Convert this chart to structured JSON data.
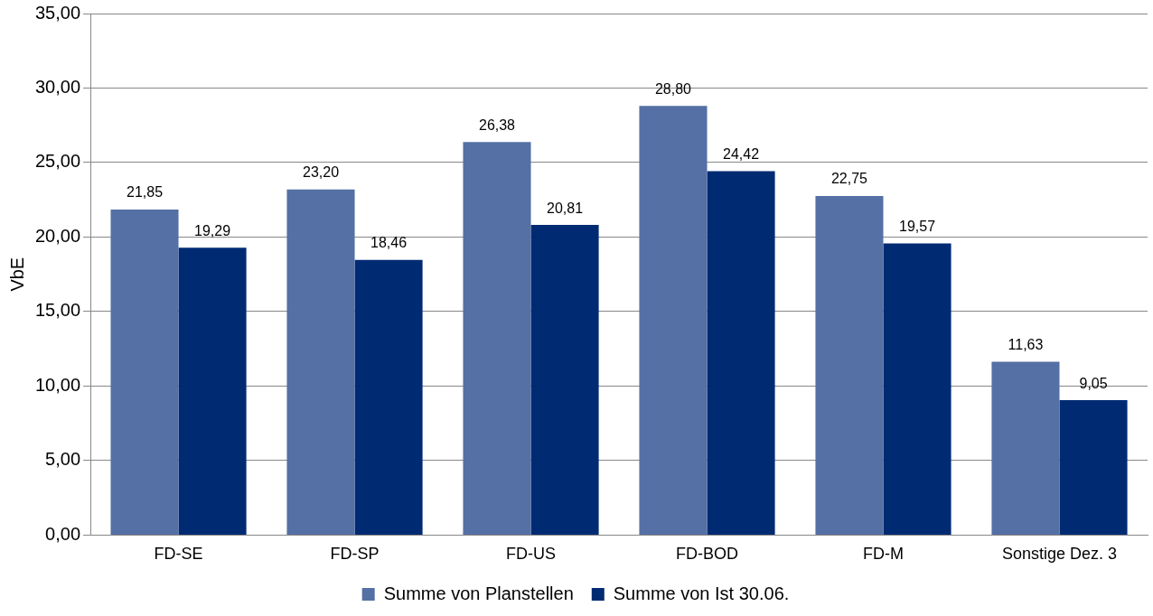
{
  "chart_data": {
    "type": "bar",
    "ylabel": "VbE",
    "categories": [
      "FD-SE",
      "FD-SP",
      "FD-US",
      "FD-BOD",
      "FD-M",
      "Sonstige Dez. 3"
    ],
    "series": [
      {
        "name": "Summe von Planstellen",
        "color": "#5470a4",
        "values": [
          21.85,
          23.2,
          26.38,
          28.8,
          22.75,
          11.63
        ],
        "value_labels": [
          "21,85",
          "23,20",
          "26,38",
          "28,80",
          "22,75",
          "11,63"
        ]
      },
      {
        "name": "Summe von Ist 30.06.",
        "color": "#002b73",
        "values": [
          19.29,
          18.46,
          20.81,
          24.42,
          19.57,
          9.05
        ],
        "value_labels": [
          "19,29",
          "18,46",
          "20,81",
          "24,42",
          "19,57",
          "9,05"
        ]
      }
    ],
    "ylim": [
      0,
      35
    ],
    "yticks": [
      {
        "value": 0,
        "label": "0,00"
      },
      {
        "value": 5,
        "label": "5,00"
      },
      {
        "value": 10,
        "label": "10,00"
      },
      {
        "value": 15,
        "label": "15,00"
      },
      {
        "value": 20,
        "label": "20,00"
      },
      {
        "value": 25,
        "label": "25,00"
      },
      {
        "value": 30,
        "label": "30,00"
      },
      {
        "value": 35,
        "label": "35,00"
      }
    ],
    "grid": "y",
    "legend": "bottom"
  }
}
